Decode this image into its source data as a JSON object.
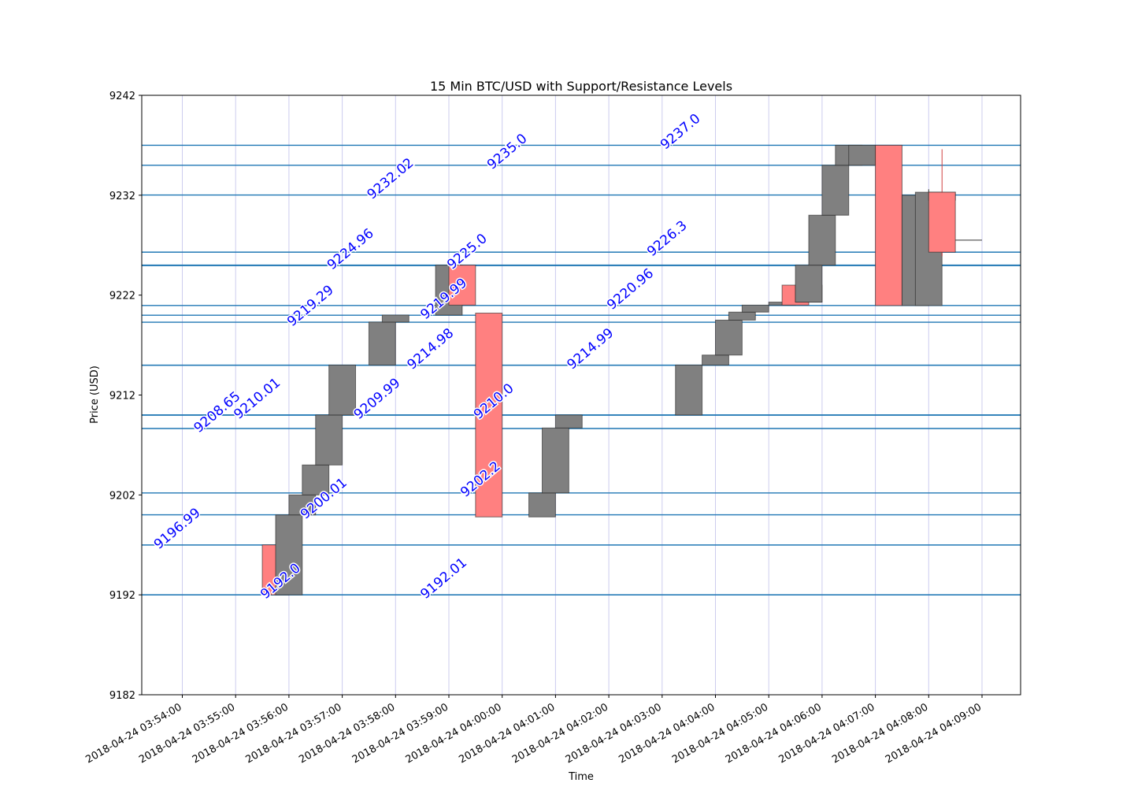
{
  "chart_data": {
    "type": "candlestick",
    "title": "15 Min BTC/USD with Support/Resistance Levels",
    "xlabel": "Time",
    "ylabel": "Price (USD)",
    "ylim": [
      9182,
      9242
    ],
    "y_ticks": [
      9182,
      9192,
      9202,
      9212,
      9222,
      9232,
      9242
    ],
    "x_ticks": [
      "2018-04-24 03:54:00",
      "2018-04-24 03:55:00",
      "2018-04-24 03:56:00",
      "2018-04-24 03:57:00",
      "2018-04-24 03:58:00",
      "2018-04-24 03:59:00",
      "2018-04-24 04:00:00",
      "2018-04-24 04:01:00",
      "2018-04-24 04:02:00",
      "2018-04-24 04:03:00",
      "2018-04-24 04:04:00",
      "2018-04-24 04:05:00",
      "2018-04-24 04:06:00",
      "2018-04-24 04:07:00",
      "2018-04-24 04:08:00",
      "2018-04-24 04:09:00"
    ],
    "grid": true,
    "colors": {
      "up": "#808080",
      "down": "#ff8080",
      "level_line": "#1f77b4",
      "level_label": "#0000ff",
      "grid": "#ccccee"
    },
    "candles": [
      {
        "time": "03:55:45",
        "open": 9197,
        "high": 9197,
        "low": 9192,
        "close": 9192
      },
      {
        "time": "03:56:00",
        "open": 9192,
        "high": 9200,
        "low": 9192,
        "close": 9200
      },
      {
        "time": "03:56:15",
        "open": 9200,
        "high": 9202,
        "low": 9200,
        "close": 9202
      },
      {
        "time": "03:56:30",
        "open": 9202,
        "high": 9205,
        "low": 9202,
        "close": 9205
      },
      {
        "time": "03:56:45",
        "open": 9205,
        "high": 9210,
        "low": 9205,
        "close": 9210
      },
      {
        "time": "03:57:00",
        "open": 9210,
        "high": 9215,
        "low": 9210,
        "close": 9215
      },
      {
        "time": "03:57:45",
        "open": 9215,
        "high": 9219.3,
        "low": 9215,
        "close": 9219.3
      },
      {
        "time": "03:58:00",
        "open": 9219.3,
        "high": 9220,
        "low": 9219.3,
        "close": 9220
      },
      {
        "time": "03:59:00",
        "open": 9220,
        "high": 9225,
        "low": 9220,
        "close": 9225
      },
      {
        "time": "03:59:15",
        "open": 9225,
        "high": 9225,
        "low": 9221,
        "close": 9221
      },
      {
        "time": "03:59:45",
        "open": 9220.2,
        "high": 9220.2,
        "low": 9199.8,
        "close": 9199.8
      },
      {
        "time": "04:00:45",
        "open": 9199.8,
        "high": 9202.2,
        "low": 9199.8,
        "close": 9202.2
      },
      {
        "time": "04:01:00",
        "open": 9202.2,
        "high": 9208.7,
        "low": 9202.2,
        "close": 9208.7
      },
      {
        "time": "04:01:15",
        "open": 9208.7,
        "high": 9210,
        "low": 9208.7,
        "close": 9210
      },
      {
        "time": "04:03:30",
        "open": 9210,
        "high": 9215,
        "low": 9210,
        "close": 9215
      },
      {
        "time": "04:04:00",
        "open": 9215,
        "high": 9216,
        "low": 9215,
        "close": 9216
      },
      {
        "time": "04:04:15",
        "open": 9216,
        "high": 9219.5,
        "low": 9216,
        "close": 9219.5
      },
      {
        "time": "04:04:30",
        "open": 9219.5,
        "high": 9220.3,
        "low": 9219.5,
        "close": 9220.3
      },
      {
        "time": "04:04:45",
        "open": 9220.3,
        "high": 9221,
        "low": 9220.3,
        "close": 9221
      },
      {
        "time": "04:05:15",
        "open": 9221,
        "high": 9221.3,
        "low": 9221,
        "close": 9221.3
      },
      {
        "time": "04:05:30",
        "open": 9223,
        "high": 9223,
        "low": 9221,
        "close": 9221
      },
      {
        "time": "04:05:45",
        "open": 9223,
        "high": 9223,
        "low": 9221.3,
        "close": 9221.3
      },
      {
        "time": "04:05:45",
        "open": 9221.3,
        "high": 9225,
        "low": 9221.3,
        "close": 9225
      },
      {
        "time": "04:06:00",
        "open": 9225,
        "high": 9230,
        "low": 9225,
        "close": 9230
      },
      {
        "time": "04:06:15",
        "open": 9230,
        "high": 9235,
        "low": 9230,
        "close": 9235
      },
      {
        "time": "04:06:30",
        "open": 9235,
        "high": 9237,
        "low": 9235,
        "close": 9237
      },
      {
        "time": "04:06:45",
        "open": 9235,
        "high": 9237,
        "low": 9235,
        "close": 9237
      },
      {
        "time": "04:07:15",
        "open": 9237,
        "high": 9237,
        "low": 9220.96,
        "close": 9220.96
      },
      {
        "time": "04:07:45",
        "open": 9220.96,
        "high": 9232,
        "low": 9220.96,
        "close": 9232
      },
      {
        "time": "04:08:00",
        "open": 9220.96,
        "high": 9232.6,
        "low": 9220.96,
        "close": 9232.3
      },
      {
        "time": "04:08:15",
        "open": 9232.3,
        "high": 9232.3,
        "low": 9231.5,
        "close": 9231.5
      },
      {
        "time": "04:08:15",
        "open": 9232.3,
        "high": 9236.6,
        "low": 9225.9,
        "close": 9226.3
      },
      {
        "time": "04:08:45",
        "open": 9227.5,
        "high": 9227.5,
        "low": 9227.5,
        "close": 9227.5
      }
    ],
    "levels": [
      {
        "value": 9192.0,
        "label": "9192.0",
        "time": "03:56:00"
      },
      {
        "value": 9192.01,
        "label": "9192.01",
        "time": "03:59:00"
      },
      {
        "value": 9196.99,
        "label": "9196.99",
        "time": "03:54:00"
      },
      {
        "value": 9200.01,
        "label": "9200.01",
        "time": "03:56:45"
      },
      {
        "value": 9202.2,
        "label": "9202.2",
        "time": "03:59:45"
      },
      {
        "value": 9208.65,
        "label": "9208.65",
        "time": "03:54:45"
      },
      {
        "value": 9209.99,
        "label": "9209.99",
        "time": "03:57:45"
      },
      {
        "value": 9210.0,
        "label": "9210.0",
        "time": "04:00:00"
      },
      {
        "value": 9210.01,
        "label": "9210.01",
        "time": "03:55:30"
      },
      {
        "value": 9214.98,
        "label": "9214.98",
        "time": "03:58:45"
      },
      {
        "value": 9214.99,
        "label": "9214.99",
        "time": "04:01:45"
      },
      {
        "value": 9219.29,
        "label": "9219.29",
        "time": "03:56:30"
      },
      {
        "value": 9219.99,
        "label": "9219.99",
        "time": "03:59:00"
      },
      {
        "value": 9220.96,
        "label": "9220.96",
        "time": "04:02:30"
      },
      {
        "value": 9224.96,
        "label": "9224.96",
        "time": "03:57:15"
      },
      {
        "value": 9225.0,
        "label": "9225.0",
        "time": "03:59:30"
      },
      {
        "value": 9226.3,
        "label": "9226.3",
        "time": "04:03:15"
      },
      {
        "value": 9232.02,
        "label": "9232.02",
        "time": "03:58:00"
      },
      {
        "value": 9235.0,
        "label": "9235.0",
        "time": "04:00:15"
      },
      {
        "value": 9237.0,
        "label": "9237.0",
        "time": "04:03:30"
      }
    ]
  }
}
